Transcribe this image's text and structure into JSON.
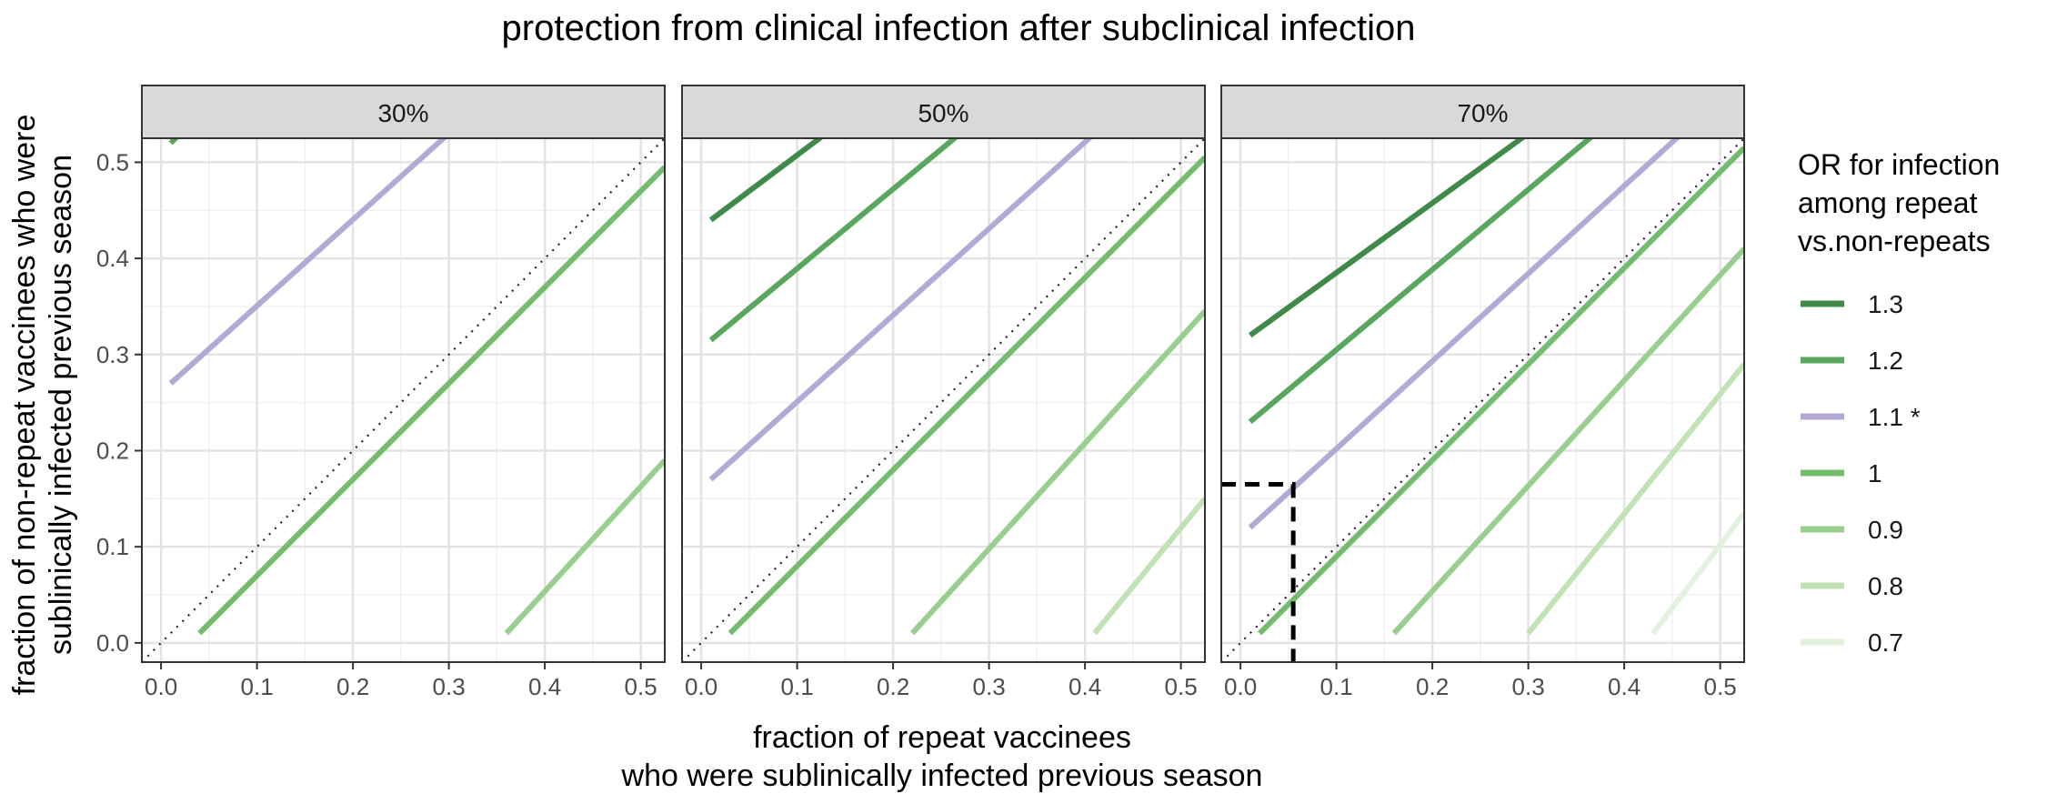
{
  "title": "protection from clinical infection after subclinical infection",
  "xlabel_line1": "fraction of repeat vaccinees",
  "xlabel_line2": "who were sublinically infected previous season",
  "ylabel_line1": "fraction of non-repeat vaccinees who were",
  "ylabel_line2": "sublinically infected previous season",
  "legend": {
    "title_lines": [
      "OR for infection",
      "among repeat",
      "vs.non-repeats"
    ],
    "entries": [
      {
        "label": "1.3",
        "color": "#3f8a48"
      },
      {
        "label": "1.2",
        "color": "#59a65f"
      },
      {
        "label": "1.1 *",
        "color": "#b3a8d6"
      },
      {
        "label": "1",
        "color": "#72bc6c"
      },
      {
        "label": "0.9",
        "color": "#99cf8e"
      },
      {
        "label": "0.8",
        "color": "#c0e2b5"
      },
      {
        "label": "0.7",
        "color": "#e2f2dc"
      }
    ]
  },
  "chart_data": {
    "type": "line",
    "facets": [
      "30%",
      "50%",
      "70%"
    ],
    "xlim": [
      -0.02,
      0.525
    ],
    "ylim": [
      -0.02,
      0.525
    ],
    "x_ticks": [
      "0.0",
      "0.1",
      "0.2",
      "0.3",
      "0.4",
      "0.5"
    ],
    "y_ticks": [
      "0.0",
      "0.1",
      "0.2",
      "0.3",
      "0.4",
      "0.5"
    ],
    "reference_line": "y = x (dotted)",
    "grid": true,
    "legend_position": "right",
    "panels": [
      {
        "facet": "30%",
        "series": [
          {
            "or": "1.2",
            "points": [
              [
                0.01,
                0.52
              ],
              [
                0.02,
                0.53
              ]
            ]
          },
          {
            "or": "1.1 *",
            "points": [
              [
                0.01,
                0.27
              ],
              [
                0.3,
                0.53
              ]
            ]
          },
          {
            "or": "1",
            "points": [
              [
                0.04,
                0.01
              ],
              [
                0.525,
                0.495
              ]
            ]
          },
          {
            "or": "0.9",
            "points": [
              [
                0.36,
                0.01
              ],
              [
                0.525,
                0.19
              ]
            ]
          }
        ]
      },
      {
        "facet": "50%",
        "series": [
          {
            "or": "1.3",
            "points": [
              [
                0.01,
                0.44
              ],
              [
                0.13,
                0.53
              ]
            ]
          },
          {
            "or": "1.2",
            "points": [
              [
                0.01,
                0.315
              ],
              [
                0.27,
                0.53
              ]
            ]
          },
          {
            "or": "1.1 *",
            "points": [
              [
                0.01,
                0.17
              ],
              [
                0.41,
                0.53
              ]
            ]
          },
          {
            "or": "1",
            "points": [
              [
                0.03,
                0.01
              ],
              [
                0.525,
                0.505
              ]
            ]
          },
          {
            "or": "0.9",
            "points": [
              [
                0.22,
                0.01
              ],
              [
                0.525,
                0.345
              ]
            ]
          },
          {
            "or": "0.8",
            "points": [
              [
                0.41,
                0.01
              ],
              [
                0.525,
                0.15
              ]
            ]
          }
        ]
      },
      {
        "facet": "70%",
        "series": [
          {
            "or": "1.3",
            "points": [
              [
                0.01,
                0.32
              ],
              [
                0.3,
                0.53
              ]
            ]
          },
          {
            "or": "1.2",
            "points": [
              [
                0.01,
                0.23
              ],
              [
                0.37,
                0.53
              ]
            ]
          },
          {
            "or": "1.1 *",
            "points": [
              [
                0.01,
                0.12
              ],
              [
                0.46,
                0.53
              ]
            ]
          },
          {
            "or": "1",
            "points": [
              [
                0.02,
                0.01
              ],
              [
                0.525,
                0.515
              ]
            ]
          },
          {
            "or": "0.9",
            "points": [
              [
                0.16,
                0.01
              ],
              [
                0.525,
                0.41
              ]
            ]
          },
          {
            "or": "0.8",
            "points": [
              [
                0.3,
                0.01
              ],
              [
                0.525,
                0.29
              ]
            ]
          },
          {
            "or": "0.7",
            "points": [
              [
                0.43,
                0.01
              ],
              [
                0.525,
                0.135
              ]
            ]
          }
        ],
        "annotation": {
          "style": "dashed black",
          "x": 0.055,
          "y": 0.165
        }
      }
    ]
  }
}
